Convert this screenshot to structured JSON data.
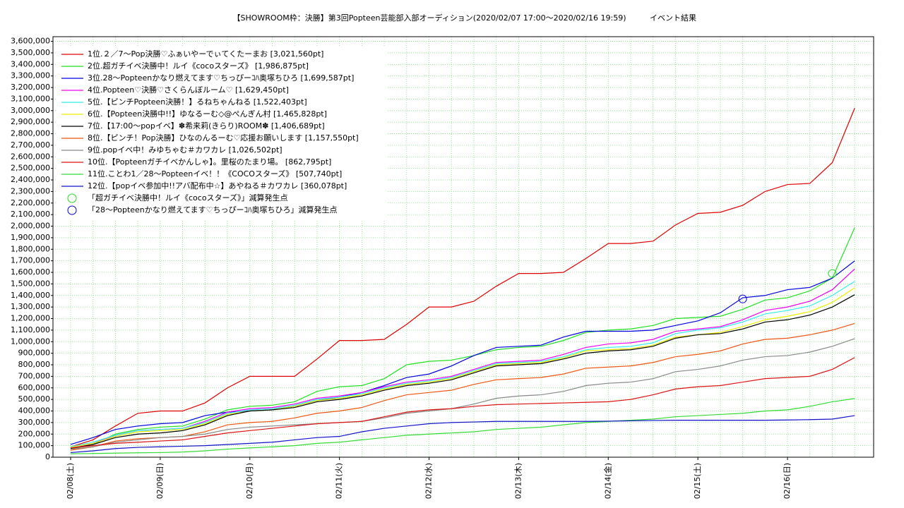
{
  "chart_data": {
    "type": "line",
    "title": "【SHOWROOM枠：決勝】第3回Popteen芸能部入部オーディション(2020/02/07 17:00〜2020/02/16 19:59)",
    "subtitle": "イベント結果",
    "grid": true,
    "legend_position": "upper left",
    "categories": [
      "02/08(土)",
      null,
      null,
      null,
      "02/09(日)",
      null,
      null,
      null,
      "02/10(月)",
      null,
      null,
      null,
      "02/11(火)",
      null,
      null,
      null,
      "02/12(水)",
      null,
      null,
      null,
      "02/13(木)",
      null,
      null,
      null,
      "02/14(金)",
      null,
      null,
      null,
      "02/15(土)",
      null,
      null,
      null,
      "02/16(日)",
      null,
      null,
      null
    ],
    "ylim": [
      0,
      3640000
    ],
    "yticks": [
      0,
      {
        "value": 100000,
        "label": "100,000"
      },
      {
        "value": 200000,
        "label": "200,000"
      },
      {
        "value": 300000,
        "label": "300,000"
      },
      {
        "value": 400000,
        "label": "400,000"
      },
      {
        "value": 500000,
        "label": "500,000"
      },
      {
        "value": 600000,
        "label": "600,000"
      },
      {
        "value": 700000,
        "label": "700,000"
      },
      {
        "value": 800000,
        "label": "800,000"
      },
      {
        "value": 900000,
        "label": "900,000"
      },
      {
        "value": 1000000,
        "label": "1,000,000"
      },
      {
        "value": 1100000,
        "label": "1,100,000"
      },
      {
        "value": 1200000,
        "label": "1,200,000"
      },
      {
        "value": 1300000,
        "label": "1,300,000"
      },
      {
        "value": 1400000,
        "label": "1,400,000"
      },
      {
        "value": 1500000,
        "label": "1,500,000"
      },
      {
        "value": 1600000,
        "label": "1,600,000"
      },
      {
        "value": 1700000,
        "label": "1,700,000"
      },
      {
        "value": 1800000,
        "label": "1,800,000"
      },
      {
        "value": 1900000,
        "label": "1,900,000"
      },
      {
        "value": 2000000,
        "label": "2,000,000"
      },
      {
        "value": 2100000,
        "label": "2,100,000"
      },
      {
        "value": 2200000,
        "label": "2,200,000"
      },
      {
        "value": 2300000,
        "label": "2,300,000"
      },
      {
        "value": 2400000,
        "label": "2,400,000"
      },
      {
        "value": 2500000,
        "label": "2,500,000"
      },
      {
        "value": 2600000,
        "label": "2,600,000"
      },
      {
        "value": 2700000,
        "label": "2,700,000"
      },
      {
        "value": 2800000,
        "label": "2,800,000"
      },
      {
        "value": 2900000,
        "label": "2,900,000"
      },
      {
        "value": 3000000,
        "label": "3,000,000"
      },
      {
        "value": 3100000,
        "label": "3,100,000"
      },
      {
        "value": 3200000,
        "label": "3,200,000"
      },
      {
        "value": 3300000,
        "label": "3,300,000"
      },
      {
        "value": 3400000,
        "label": "3,400,000"
      },
      {
        "value": 3500000,
        "label": "3,500,000"
      },
      {
        "value": 3600000,
        "label": "3,600,000"
      }
    ],
    "series": [
      {
        "name": "1位.２／7〜Pop決勝♡ふぁいやーでぃてくたーまお [3,021,560pt]",
        "color": "#e00000",
        "values": [
          90000,
          150000,
          270000,
          380000,
          400000,
          400000,
          470000,
          600000,
          700000,
          700000,
          700000,
          850000,
          1010000,
          1010000,
          1020000,
          1150000,
          1300000,
          1300000,
          1350000,
          1480000,
          1590000,
          1590000,
          1600000,
          1720000,
          1850000,
          1850000,
          1870000,
          2010000,
          2110000,
          2120000,
          2180000,
          2300000,
          2360000,
          2370000,
          2550000,
          3021560
        ]
      },
      {
        "name": "2位.超ガチイベ決勝中！ルイ《cocoスターズ》 [1,986,875pt]",
        "color": "#22e022",
        "values": [
          70000,
          110000,
          200000,
          240000,
          260000,
          270000,
          330000,
          410000,
          440000,
          450000,
          480000,
          570000,
          610000,
          620000,
          680000,
          800000,
          830000,
          840000,
          880000,
          930000,
          950000,
          960000,
          1010000,
          1080000,
          1100000,
          1110000,
          1140000,
          1200000,
          1210000,
          1220000,
          1280000,
          1360000,
          1380000,
          1440000,
          1550000,
          1986875
        ]
      },
      {
        "name": "3位.28〜Popteenかなり燃えてます♡ちっぴーｺﾊ奥塚ちひろ [1,699,587pt]",
        "color": "#0000e0",
        "values": [
          110000,
          170000,
          240000,
          270000,
          290000,
          300000,
          360000,
          390000,
          400000,
          410000,
          440000,
          490000,
          520000,
          560000,
          620000,
          690000,
          720000,
          790000,
          880000,
          950000,
          960000,
          970000,
          1040000,
          1090000,
          1090000,
          1090000,
          1100000,
          1140000,
          1180000,
          1250000,
          1380000,
          1400000,
          1450000,
          1470000,
          1550000,
          1699587
        ]
      },
      {
        "name": "4位.Popteen♡決勝♡さくらんぼルーム♡ [1,629,450pt]",
        "color": "#ee00ee",
        "values": [
          80000,
          120000,
          190000,
          230000,
          240000,
          250000,
          310000,
          390000,
          420000,
          430000,
          460000,
          510000,
          530000,
          560000,
          610000,
          650000,
          670000,
          700000,
          760000,
          820000,
          830000,
          840000,
          890000,
          950000,
          980000,
          990000,
          1020000,
          1090000,
          1110000,
          1130000,
          1190000,
          1270000,
          1300000,
          1350000,
          1450000,
          1629450
        ]
      },
      {
        "name": "5位.【ピンチPopteen決勝！】るねちゃんねる [1,522,403pt]",
        "color": "#33eeee",
        "values": [
          90000,
          130000,
          190000,
          230000,
          240000,
          250000,
          300000,
          380000,
          410000,
          420000,
          450000,
          500000,
          520000,
          550000,
          600000,
          640000,
          660000,
          690000,
          750000,
          810000,
          820000,
          830000,
          870000,
          930000,
          950000,
          960000,
          990000,
          1070000,
          1100000,
          1120000,
          1170000,
          1240000,
          1270000,
          1310000,
          1400000,
          1522403
        ]
      },
      {
        "name": "6位.【Popteen決勝中!!】ゆなるーむ◇@ぺんぎん村 [1,465,828pt]",
        "color": "#eeee00",
        "values": [
          85000,
          120000,
          180000,
          220000,
          230000,
          240000,
          290000,
          370000,
          400000,
          410000,
          440000,
          490000,
          510000,
          540000,
          590000,
          630000,
          650000,
          680000,
          740000,
          800000,
          810000,
          820000,
          860000,
          920000,
          930000,
          940000,
          970000,
          1040000,
          1060000,
          1080000,
          1130000,
          1190000,
          1220000,
          1260000,
          1340000,
          1465828
        ]
      },
      {
        "name": "7位.【17:00〜popイベ】✽希来莉(きらり)ROOM✽ [1,406,689pt]",
        "color": "#000000",
        "values": [
          75000,
          110000,
          170000,
          200000,
          210000,
          230000,
          280000,
          360000,
          400000,
          410000,
          430000,
          480000,
          500000,
          530000,
          580000,
          620000,
          640000,
          670000,
          730000,
          790000,
          800000,
          810000,
          850000,
          900000,
          920000,
          930000,
          960000,
          1030000,
          1060000,
          1070000,
          1110000,
          1170000,
          1190000,
          1230000,
          1300000,
          1406689
        ]
      },
      {
        "name": "8位.【ピンチ！Pop決勝】ひなのんるーむ♡応援お願いします [1,157,550pt]",
        "color": "#ee5511",
        "values": [
          60000,
          90000,
          140000,
          160000,
          170000,
          180000,
          220000,
          280000,
          300000,
          310000,
          340000,
          380000,
          400000,
          430000,
          490000,
          540000,
          560000,
          580000,
          630000,
          670000,
          680000,
          690000,
          720000,
          770000,
          780000,
          790000,
          820000,
          870000,
          890000,
          920000,
          980000,
          1020000,
          1030000,
          1060000,
          1100000,
          1157550
        ]
      },
      {
        "name": "9位.popイベ中！みゆちゃむ＃カワカレ [1,026,502pt]",
        "color": "#888888",
        "values": [
          70000,
          90000,
          130000,
          150000,
          170000,
          180000,
          200000,
          240000,
          260000,
          270000,
          280000,
          290000,
          300000,
          310000,
          340000,
          380000,
          400000,
          420000,
          460000,
          510000,
          530000,
          540000,
          570000,
          620000,
          640000,
          650000,
          680000,
          740000,
          760000,
          790000,
          840000,
          870000,
          880000,
          910000,
          960000,
          1026502
        ]
      },
      {
        "name": "10位.【Popteenガチイベかんしゃ】。里桜のたまり場。 [862,795pt]",
        "color": "#dd1111",
        "values": [
          80000,
          100000,
          120000,
          130000,
          140000,
          150000,
          180000,
          210000,
          230000,
          250000,
          270000,
          290000,
          300000,
          310000,
          350000,
          390000,
          410000,
          420000,
          440000,
          455000,
          460000,
          465000,
          470000,
          475000,
          480000,
          500000,
          540000,
          590000,
          610000,
          620000,
          650000,
          680000,
          690000,
          700000,
          760000,
          862795
        ]
      },
      {
        "name": "11位.ことわ1／28〜Popteenイベ！！《COCOスターズ》 [507,740pt]",
        "color": "#33dd33",
        "values": [
          30000,
          32000,
          35000,
          38000,
          40000,
          45000,
          55000,
          70000,
          80000,
          90000,
          100000,
          120000,
          130000,
          150000,
          170000,
          190000,
          200000,
          210000,
          220000,
          240000,
          250000,
          260000,
          280000,
          300000,
          310000,
          320000,
          330000,
          350000,
          360000,
          370000,
          380000,
          400000,
          410000,
          440000,
          480000,
          507740
        ]
      },
      {
        "name": "12位.【popイベ参加中!!アバ配布中☆】あやねる＃カワカレ [360,078pt]",
        "color": "#1111cc",
        "values": [
          40000,
          55000,
          75000,
          85000,
          90000,
          95000,
          100000,
          110000,
          120000,
          130000,
          150000,
          170000,
          180000,
          220000,
          250000,
          270000,
          290000,
          300000,
          305000,
          310000,
          310000,
          310000,
          310000,
          310000,
          312000,
          315000,
          318000,
          320000,
          320000,
          320000,
          320000,
          320000,
          322000,
          325000,
          330000,
          360078
        ]
      }
    ],
    "events": [
      {
        "name": "「超ガチイベ決勝中！ルイ《cocoスターズ》」減算発生点",
        "color": "#22e022",
        "index": 34,
        "value": 1590000
      },
      {
        "name": "「28〜Popteenかなり燃えてます♡ちっぴーｺﾊ奥塚ちひろ」減算発生点",
        "color": "#0000e0",
        "index": 30,
        "value": 1370000
      }
    ]
  }
}
